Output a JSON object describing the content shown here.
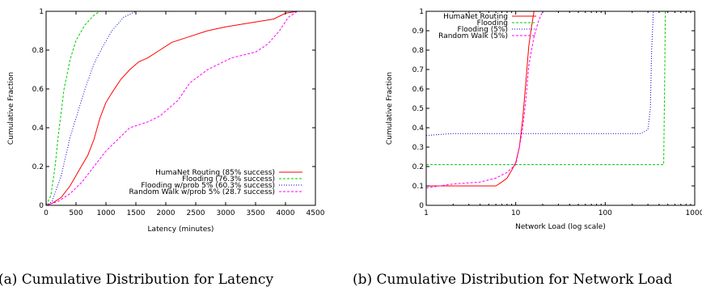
{
  "captions": {
    "a": "(a)  Cumulative Distribution for Latency",
    "b": "(b)  Cumulative Distribution for Network Load"
  },
  "chart_data": [
    {
      "type": "line",
      "xlabel": "Latency (minutes)",
      "ylabel": "Cumulative Fraction",
      "xlim": [
        0,
        4500
      ],
      "ylim": [
        0,
        1
      ],
      "x_scale": "linear",
      "xticks": [
        0,
        500,
        1000,
        1500,
        2000,
        2500,
        3000,
        3500,
        4000,
        4500
      ],
      "xtick_labels": [
        "0",
        "500",
        "1000",
        "1500",
        "2000",
        "2500",
        "3000",
        "3500",
        "4000",
        "4500"
      ],
      "yticks": [
        0,
        0.2,
        0.4,
        0.6,
        0.8,
        1
      ],
      "ytick_labels": [
        "0",
        "0.2",
        "0.4",
        "0.6",
        "0.8",
        "1"
      ],
      "legend_position": "bottom-right",
      "series": [
        {
          "name": "HumaNet Routing (85% success)",
          "color": "#ff0000",
          "dash": "solid",
          "points": [
            [
              0,
              0
            ],
            [
              100,
              0.01
            ],
            [
              250,
              0.04
            ],
            [
              400,
              0.1
            ],
            [
              550,
              0.18
            ],
            [
              700,
              0.26
            ],
            [
              800,
              0.34
            ],
            [
              900,
              0.45
            ],
            [
              1000,
              0.53
            ],
            [
              1100,
              0.58
            ],
            [
              1250,
              0.65
            ],
            [
              1400,
              0.7
            ],
            [
              1550,
              0.74
            ],
            [
              1700,
              0.76
            ],
            [
              1900,
              0.8
            ],
            [
              2100,
              0.84
            ],
            [
              2400,
              0.87
            ],
            [
              2700,
              0.9
            ],
            [
              3000,
              0.92
            ],
            [
              3400,
              0.94
            ],
            [
              3800,
              0.96
            ],
            [
              4000,
              0.99
            ],
            [
              4200,
              1.0
            ]
          ]
        },
        {
          "name": "Flooding (76.3% success)",
          "color": "#00cc00",
          "dash": "3,2",
          "points": [
            [
              0,
              0
            ],
            [
              80,
              0.05
            ],
            [
              150,
              0.2
            ],
            [
              200,
              0.35
            ],
            [
              300,
              0.6
            ],
            [
              400,
              0.75
            ],
            [
              500,
              0.85
            ],
            [
              650,
              0.93
            ],
            [
              800,
              0.98
            ],
            [
              900,
              1.0
            ],
            [
              1800,
              1.0
            ]
          ]
        },
        {
          "name": "Flooding w/prob 5% (60.3% success)",
          "color": "#0000cc",
          "dash": "1,2",
          "points": [
            [
              0,
              0
            ],
            [
              100,
              0.02
            ],
            [
              250,
              0.15
            ],
            [
              400,
              0.35
            ],
            [
              500,
              0.45
            ],
            [
              650,
              0.6
            ],
            [
              800,
              0.73
            ],
            [
              950,
              0.82
            ],
            [
              1100,
              0.9
            ],
            [
              1300,
              0.97
            ],
            [
              1500,
              1.0
            ],
            [
              2000,
              1.0
            ]
          ]
        },
        {
          "name": "Random Walk w/prob 5% (28.7 success)",
          "color": "#ff00ff",
          "dash": "3,2",
          "points": [
            [
              0,
              0
            ],
            [
              200,
              0.02
            ],
            [
              400,
              0.06
            ],
            [
              600,
              0.12
            ],
            [
              800,
              0.2
            ],
            [
              1000,
              0.28
            ],
            [
              1200,
              0.34
            ],
            [
              1400,
              0.4
            ],
            [
              1700,
              0.43
            ],
            [
              1900,
              0.46
            ],
            [
              2200,
              0.54
            ],
            [
              2400,
              0.63
            ],
            [
              2700,
              0.7
            ],
            [
              3100,
              0.76
            ],
            [
              3500,
              0.79
            ],
            [
              3700,
              0.83
            ],
            [
              3900,
              0.9
            ],
            [
              4050,
              0.97
            ],
            [
              4200,
              1.0
            ]
          ]
        }
      ]
    },
    {
      "type": "line",
      "xlabel": "Network Load (log scale)",
      "ylabel": "Cumulative Fraction",
      "xlim": [
        1,
        1000
      ],
      "ylim": [
        0,
        1
      ],
      "x_scale": "log",
      "xticks": [
        1,
        10,
        100,
        1000
      ],
      "xtick_labels": [
        "1",
        "10",
        "100",
        "1000"
      ],
      "yticks": [
        0,
        0.1,
        0.2,
        0.3,
        0.4,
        0.5,
        0.6,
        0.7,
        0.8,
        0.9,
        1
      ],
      "ytick_labels": [
        "0",
        "0.1",
        "0.2",
        "0.3",
        "0.4",
        "0.5",
        "0.6",
        "0.7",
        "0.8",
        "0.9",
        "1"
      ],
      "legend_position": "top-left",
      "series": [
        {
          "name": "HumaNet Routing",
          "color": "#ff0000",
          "dash": "solid",
          "points": [
            [
              1,
              0.1
            ],
            [
              6,
              0.1
            ],
            [
              7,
              0.12
            ],
            [
              8,
              0.14
            ],
            [
              9,
              0.18
            ],
            [
              10,
              0.22
            ],
            [
              11,
              0.3
            ],
            [
              12,
              0.45
            ],
            [
              13,
              0.64
            ],
            [
              14,
              0.82
            ],
            [
              15,
              0.92
            ],
            [
              16,
              1.0
            ]
          ]
        },
        {
          "name": "Flooding",
          "color": "#00cc00",
          "dash": "3,2",
          "points": [
            [
              1,
              0.21
            ],
            [
              450,
              0.21
            ],
            [
              460,
              0.6
            ],
            [
              470,
              1.0
            ],
            [
              1000,
              1.0
            ]
          ]
        },
        {
          "name": "Flooding (5%)",
          "color": "#0000cc",
          "dash": "1,2",
          "points": [
            [
              1,
              0.36
            ],
            [
              2,
              0.37
            ],
            [
              250,
              0.37
            ],
            [
              300,
              0.39
            ],
            [
              320,
              0.5
            ],
            [
              330,
              0.8
            ],
            [
              345,
              1.0
            ],
            [
              1000,
              1.0
            ]
          ]
        },
        {
          "name": "Random Walk (5%)",
          "color": "#ff00ff",
          "dash": "3,2",
          "points": [
            [
              1,
              0.09
            ],
            [
              2,
              0.11
            ],
            [
              4,
              0.12
            ],
            [
              6,
              0.14
            ],
            [
              8,
              0.17
            ],
            [
              10,
              0.21
            ],
            [
              11,
              0.3
            ],
            [
              12,
              0.4
            ],
            [
              13,
              0.55
            ],
            [
              14,
              0.72
            ],
            [
              16,
              0.87
            ],
            [
              18,
              0.95
            ],
            [
              20,
              1.0
            ]
          ]
        }
      ]
    }
  ]
}
